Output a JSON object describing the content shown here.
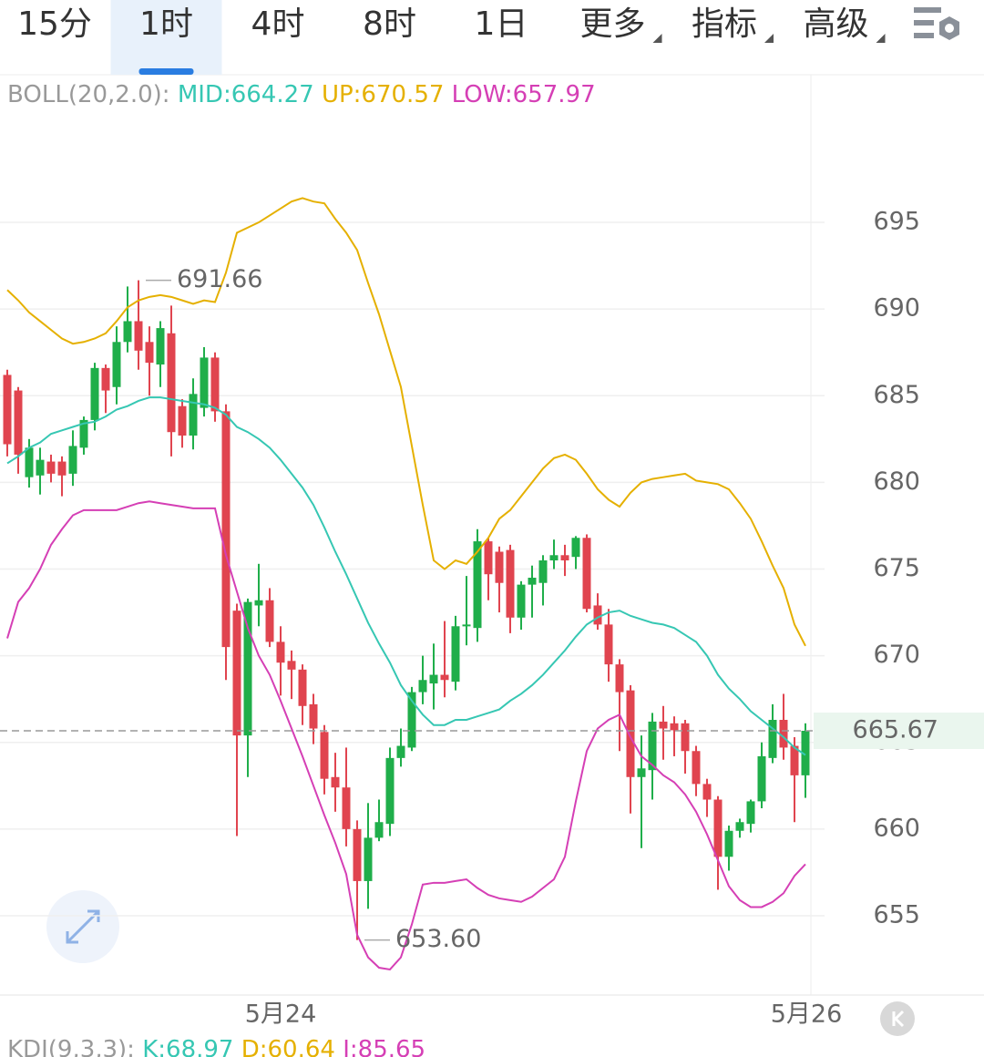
{
  "tabs": [
    {
      "label": "15分"
    },
    {
      "label": "1时",
      "active": true
    },
    {
      "label": "4时"
    },
    {
      "label": "8时"
    },
    {
      "label": "1日"
    },
    {
      "label": "更多",
      "dropdown": true
    },
    {
      "label": "指标",
      "dropdown": true
    },
    {
      "label": "高级",
      "dropdown": true
    }
  ],
  "chart_data": {
    "type": "candlestick",
    "indicator": "BOLL(20,2.0):",
    "categories": [
      null,
      null,
      null,
      null,
      null,
      null,
      null,
      null,
      null,
      null,
      null,
      null,
      null,
      null,
      null,
      null,
      null,
      null,
      null,
      null,
      null,
      null,
      null,
      null,
      null,
      "5月24",
      null,
      null,
      null,
      null,
      null,
      null,
      null,
      null,
      null,
      null,
      null,
      null,
      null,
      null,
      null,
      null,
      null,
      null,
      null,
      null,
      null,
      null,
      null,
      null,
      null,
      null,
      null,
      null,
      null,
      null,
      null,
      null,
      null,
      null,
      null,
      null,
      null,
      null,
      null,
      null,
      null,
      null,
      null,
      null,
      null,
      null,
      null,
      "5月26"
    ],
    "open": [
      686.2,
      685.3,
      680.3,
      680.4,
      681.2,
      681.2,
      680.5,
      682.0,
      683.6,
      686.6,
      685.5,
      688.1,
      689.3,
      688.1,
      686.8,
      688.6,
      684.4,
      682.7,
      684.3,
      687.2,
      684.1,
      672.6,
      665.4,
      672.9,
      673.2,
      670.8,
      669.7,
      669.2,
      667.2,
      665.6,
      663.0,
      662.4,
      660.0,
      657.0,
      659.5,
      660.3,
      664.1,
      664.7,
      667.9,
      668.4,
      668.9,
      668.5,
      671.7,
      671.6,
      676.6,
      676.0,
      676.1,
      672.2,
      674.1,
      674.2,
      675.5,
      675.8,
      675.7,
      676.8,
      672.9,
      671.8,
      669.5,
      668.0,
      663.0,
      663.4,
      666.2,
      666.1,
      666.1,
      664.5,
      662.6,
      661.7,
      658.4,
      659.9,
      660.3,
      661.6,
      664.1,
      666.3,
      664.8,
      663.1
    ],
    "high": [
      686.5,
      685.5,
      682.5,
      682.0,
      681.6,
      681.5,
      683.0,
      683.8,
      686.9,
      686.8,
      689.0,
      691.3,
      691.66,
      689.0,
      689.3,
      690.2,
      684.8,
      686.0,
      687.8,
      687.5,
      684.5,
      673.0,
      673.3,
      675.3,
      673.9,
      671.7,
      670.3,
      669.5,
      667.8,
      666.0,
      664.4,
      664.7,
      660.5,
      661.5,
      661.7,
      664.7,
      665.8,
      668.2,
      670.0,
      670.7,
      672.0,
      672.3,
      674.6,
      677.3,
      676.8,
      676.3,
      676.4,
      674.3,
      675.2,
      675.8,
      676.7,
      676.4,
      676.9,
      677.0,
      673.6,
      672.7,
      669.8,
      668.3,
      665.4,
      666.7,
      667.1,
      666.5,
      666.3,
      664.8,
      662.9,
      661.9,
      660.2,
      660.6,
      661.7,
      665.0,
      667.2,
      667.8,
      665.3,
      666.1
    ],
    "low": [
      681.5,
      680.5,
      679.7,
      679.3,
      680.0,
      679.2,
      679.8,
      681.6,
      683.0,
      684.0,
      684.5,
      687.5,
      686.5,
      685.0,
      685.5,
      681.5,
      682.0,
      681.9,
      683.8,
      683.5,
      668.6,
      659.6,
      663.0,
      671.7,
      670.5,
      667.7,
      667.5,
      666.0,
      664.9,
      662.0,
      661.0,
      659.0,
      653.6,
      655.4,
      659.3,
      659.6,
      663.6,
      664.5,
      667.2,
      666.9,
      667.6,
      668.0,
      670.6,
      670.8,
      673.2,
      672.5,
      671.3,
      671.5,
      672.2,
      672.9,
      675.0,
      674.6,
      675.0,
      672.5,
      671.5,
      668.5,
      664.5,
      660.9,
      658.9,
      661.7,
      664.0,
      664.2,
      663.2,
      661.9,
      660.7,
      656.5,
      657.6,
      659.5,
      659.8,
      661.2,
      663.8,
      664.0,
      660.4,
      661.8
    ],
    "close": [
      682.2,
      681.6,
      682.0,
      681.3,
      680.5,
      680.4,
      682.1,
      683.6,
      686.6,
      685.3,
      688.1,
      689.3,
      687.6,
      686.9,
      688.9,
      682.9,
      682.7,
      685.1,
      687.2,
      684.1,
      670.5,
      665.4,
      673.1,
      673.2,
      670.8,
      669.6,
      669.2,
      667.1,
      665.8,
      662.9,
      662.4,
      660.0,
      657.0,
      659.5,
      660.4,
      664.1,
      664.8,
      667.9,
      668.6,
      668.9,
      668.6,
      671.7,
      671.8,
      676.6,
      674.7,
      674.2,
      672.2,
      674.1,
      674.5,
      675.5,
      675.8,
      675.5,
      676.8,
      672.7,
      671.8,
      669.5,
      667.9,
      663.0,
      663.5,
      666.2,
      665.8,
      665.7,
      664.5,
      662.6,
      661.7,
      658.4,
      659.9,
      660.4,
      661.6,
      664.2,
      666.3,
      664.7,
      663.1,
      665.67
    ],
    "up_color": "#1fae4a",
    "down_color": "#e0444f",
    "series": [
      {
        "name": "MID:664.27",
        "color": "#36c7b3",
        "values": [
          681.1,
          681.5,
          682.0,
          682.3,
          682.8,
          683.0,
          683.2,
          683.4,
          683.5,
          683.8,
          684.2,
          684.4,
          684.7,
          684.9,
          684.9,
          684.8,
          684.7,
          684.6,
          684.5,
          684.3,
          683.9,
          683.2,
          682.9,
          682.5,
          682.0,
          681.3,
          680.5,
          679.7,
          678.7,
          677.4,
          676.0,
          674.7,
          673.3,
          671.9,
          670.7,
          669.6,
          668.3,
          667.4,
          666.6,
          666.0,
          666.0,
          666.3,
          666.3,
          666.5,
          666.7,
          666.9,
          667.4,
          667.8,
          668.3,
          668.9,
          669.6,
          670.3,
          671.1,
          671.8,
          672.2,
          672.5,
          672.6,
          672.3,
          672.1,
          671.9,
          671.8,
          671.6,
          671.2,
          670.8,
          670.0,
          668.9,
          668.1,
          667.5,
          666.8,
          666.3,
          665.8,
          665.3,
          664.7,
          664.27
        ]
      },
      {
        "name": "UP:670.57",
        "color": "#e5b000",
        "values": [
          691.1,
          690.5,
          689.8,
          689.3,
          688.8,
          688.3,
          688.0,
          688.1,
          688.3,
          688.6,
          689.3,
          690.1,
          690.5,
          690.7,
          690.8,
          690.7,
          690.5,
          690.3,
          690.5,
          690.4,
          692.1,
          694.4,
          694.7,
          695.0,
          695.4,
          695.8,
          696.2,
          696.4,
          696.2,
          696.1,
          695.2,
          694.4,
          693.4,
          691.5,
          689.7,
          687.6,
          685.5,
          682.1,
          678.7,
          675.5,
          675.0,
          675.5,
          675.3,
          676.0,
          676.8,
          677.9,
          678.4,
          679.2,
          680.0,
          680.8,
          681.4,
          681.6,
          681.3,
          680.5,
          679.6,
          679.0,
          678.6,
          679.4,
          680.0,
          680.2,
          680.3,
          680.4,
          680.5,
          680.1,
          680.0,
          679.9,
          679.6,
          678.8,
          677.9,
          676.6,
          675.2,
          673.9,
          671.8,
          670.57
        ]
      },
      {
        "name": "LOW:657.97",
        "color": "#d53fb5",
        "values": [
          671.0,
          673.1,
          673.9,
          675.0,
          676.4,
          677.3,
          678.1,
          678.4,
          678.4,
          678.4,
          678.4,
          678.6,
          678.8,
          678.9,
          678.8,
          678.7,
          678.6,
          678.5,
          678.5,
          678.5,
          675.8,
          673.7,
          671.6,
          670.0,
          668.9,
          667.4,
          665.8,
          664.2,
          662.5,
          660.8,
          659.2,
          657.4,
          653.9,
          652.6,
          652.0,
          651.9,
          652.6,
          654.5,
          656.8,
          656.9,
          656.9,
          657.0,
          657.1,
          656.6,
          656.2,
          656.0,
          655.9,
          655.8,
          656.1,
          656.6,
          657.1,
          658.4,
          661.6,
          664.5,
          665.8,
          666.3,
          666.6,
          665.3,
          664.2,
          663.7,
          663.1,
          662.7,
          662.0,
          661.0,
          659.7,
          658.2,
          656.7,
          655.9,
          655.5,
          655.5,
          655.8,
          656.3,
          657.3,
          657.97
        ]
      }
    ],
    "annotations": [
      {
        "label": "691.66"
      },
      {
        "label": "653.60"
      }
    ],
    "last_price": 665.67,
    "ylim": [
      650.53,
      703.36
    ],
    "yticks": [
      655,
      660,
      665,
      670,
      675,
      680,
      685,
      690,
      695
    ],
    "grid": true
  },
  "footer": {
    "indicator": "KDJ(9,3,3):",
    "items": [
      {
        "text": "K:68.97",
        "color": "#36c7b3"
      },
      {
        "text": "D:60.64",
        "color": "#e5b000"
      },
      {
        "text": "J:85.65",
        "color": "#d53fb5"
      }
    ]
  }
}
